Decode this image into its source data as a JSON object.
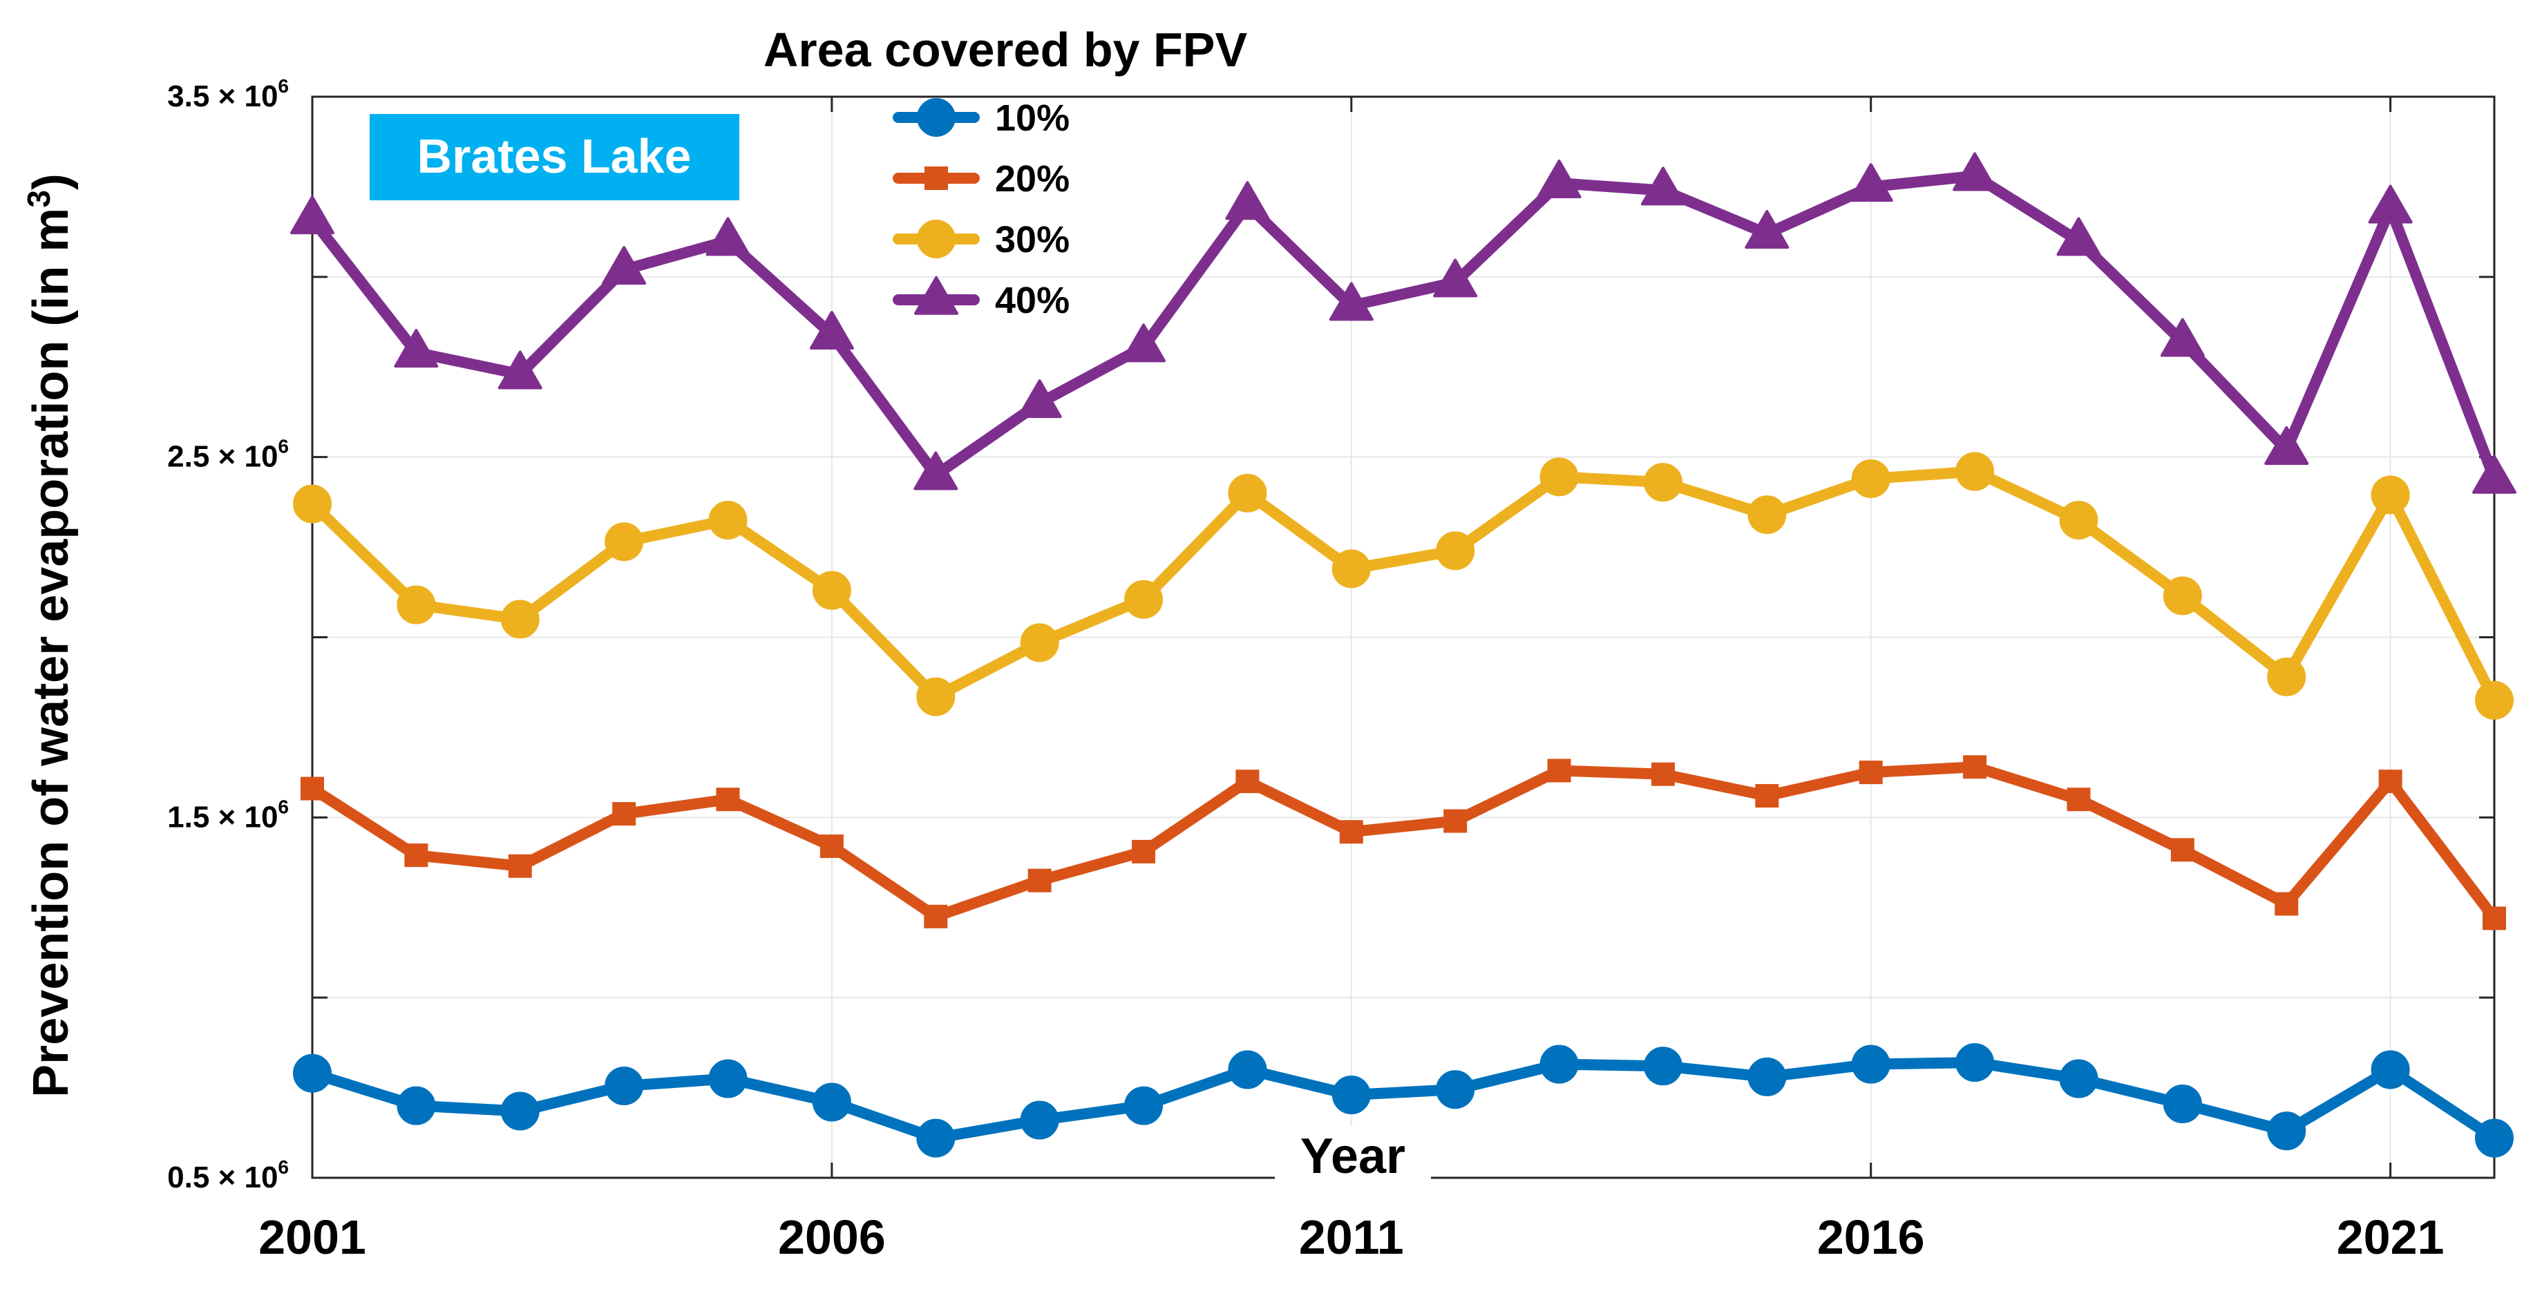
{
  "chart_data": {
    "type": "line",
    "title": "",
    "xlabel": "Year",
    "ylabel": "Prevention of water evaporation (in m",
    "ylabel_superscript": "3",
    "ylabel_suffix": ")",
    "xlim": [
      2001,
      2022
    ],
    "ylim": [
      500000,
      3500000
    ],
    "xticks": [
      2001,
      2006,
      2011,
      2016,
      2021
    ],
    "xtick_labels": [
      "2001",
      "2006",
      "2011",
      "2016",
      "2021"
    ],
    "yticks": [
      500000,
      1500000,
      2500000,
      3500000
    ],
    "ytick_labels": [
      {
        "mantissa": "0.5 × 10",
        "exponent": "6"
      },
      {
        "mantissa": "1.5 × 10",
        "exponent": "6"
      },
      {
        "mantissa": "2.5 × 10",
        "exponent": "6"
      },
      {
        "mantissa": "3.5 × 10",
        "exponent": "6"
      }
    ],
    "grid": true,
    "annotation": "Brates Lake",
    "legend_title": "Area covered by FPV",
    "legend_position": "top-center",
    "x": [
      2001,
      2002,
      2003,
      2004,
      2005,
      2006,
      2007,
      2008,
      2009,
      2010,
      2011,
      2012,
      2013,
      2014,
      2015,
      2016,
      2017,
      2018,
      2019,
      2020,
      2021,
      2022
    ],
    "series": [
      {
        "name": "10%",
        "color": "#0072BD",
        "marker": "circle",
        "values": [
          790000,
          700000,
          685000,
          755000,
          775000,
          710000,
          610000,
          660000,
          700000,
          800000,
          730000,
          745000,
          815000,
          810000,
          780000,
          815000,
          820000,
          775000,
          705000,
          630000,
          800000,
          610000
        ]
      },
      {
        "name": "20%",
        "color": "#D95319",
        "marker": "square",
        "values": [
          1580000,
          1395000,
          1365000,
          1510000,
          1550000,
          1420000,
          1225000,
          1325000,
          1405000,
          1600000,
          1460000,
          1490000,
          1630000,
          1620000,
          1560000,
          1625000,
          1640000,
          1550000,
          1410000,
          1260000,
          1600000,
          1220000
        ]
      },
      {
        "name": "30%",
        "color": "#EDB120",
        "marker": "circle",
        "values": [
          2370000,
          2090000,
          2050000,
          2265000,
          2325000,
          2130000,
          1835000,
          1985000,
          2105000,
          2400000,
          2190000,
          2240000,
          2445000,
          2430000,
          2340000,
          2440000,
          2460000,
          2325000,
          2115000,
          1890000,
          2395000,
          1825000
        ]
      },
      {
        "name": "40%",
        "color": "#7E2F8E",
        "marker": "triangle",
        "values": [
          3160000,
          2790000,
          2730000,
          3020000,
          3100000,
          2840000,
          2450000,
          2650000,
          2805000,
          3200000,
          2920000,
          2985000,
          3260000,
          3240000,
          3120000,
          3250000,
          3280000,
          3100000,
          2820000,
          2520000,
          3190000,
          2440000
        ]
      }
    ]
  },
  "colors": {
    "badge_background": "#00B0F0",
    "grid": "#E6E6E6",
    "axis": "#262626"
  }
}
